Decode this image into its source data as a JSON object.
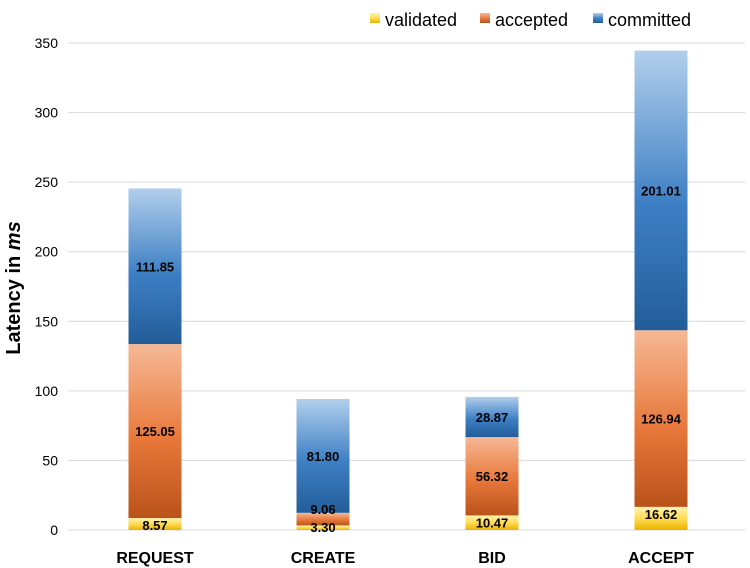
{
  "chart_data": {
    "type": "bar",
    "stacked": true,
    "categories": [
      "REQUEST",
      "CREATE",
      "BID",
      "ACCEPT"
    ],
    "series": [
      {
        "name": "validated",
        "values": [
          8.57,
          3.3,
          10.47,
          16.62
        ],
        "color": "#f5c518"
      },
      {
        "name": "accepted",
        "values": [
          125.05,
          9.06,
          56.32,
          126.94
        ],
        "color": "#e8783a"
      },
      {
        "name": "committed",
        "values": [
          111.85,
          81.8,
          28.87,
          201.01
        ],
        "color": "#3d7fc4"
      }
    ],
    "data_labels": [
      [
        "8.57",
        "3.30",
        "10.47",
        "16.62"
      ],
      [
        "125.05",
        "9.06",
        "56.32",
        "126.94"
      ],
      [
        "111.85",
        "81.80",
        "28.87",
        "201.01"
      ]
    ],
    "title": "",
    "xlabel": "",
    "ylabel_prefix": "Latency in ",
    "ylabel_unit": "ms",
    "ylim": [
      0,
      350
    ],
    "yticks": [
      "0",
      "50",
      "100",
      "150",
      "200",
      "250",
      "300",
      "350"
    ],
    "grid": true,
    "legend_position": "top-right"
  }
}
